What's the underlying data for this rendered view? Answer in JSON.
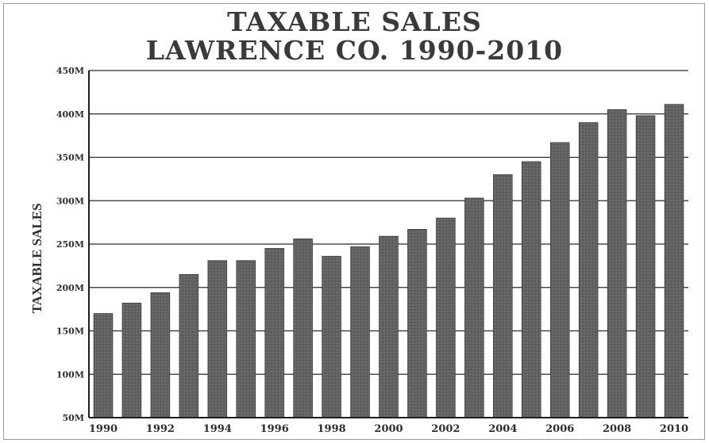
{
  "chart_data": {
    "type": "bar",
    "title": "TAXABLE SALES",
    "subtitle": "LAWRENCE CO.  1990-2010",
    "xlabel": "",
    "ylabel": "TAXABLE SALES",
    "ylim": [
      50,
      450
    ],
    "yticks": [
      50,
      100,
      150,
      200,
      250,
      300,
      350,
      400,
      450
    ],
    "ytick_labels": [
      "50M",
      "100M",
      "150M",
      "200M",
      "250M",
      "300M",
      "350M",
      "400M",
      "450M"
    ],
    "categories": [
      "1990",
      "1991",
      "1992",
      "1993",
      "1994",
      "1995",
      "1996",
      "1997",
      "1998",
      "1999",
      "2000",
      "2001",
      "2002",
      "2003",
      "2004",
      "2005",
      "2006",
      "2007",
      "2008",
      "2009",
      "2010"
    ],
    "xtick_labels": [
      "1990",
      "1992",
      "1994",
      "1996",
      "1998",
      "2000",
      "2002",
      "2004",
      "2006",
      "2008",
      "2010"
    ],
    "values": [
      170,
      182,
      194,
      215,
      231,
      231,
      245,
      256,
      236,
      247,
      259,
      267,
      280,
      303,
      330,
      345,
      367,
      390,
      405,
      398,
      411
    ],
    "grid": true,
    "legend": "none",
    "bar_color": "#5f5f5f",
    "grid_color": "#2b2b2b"
  }
}
